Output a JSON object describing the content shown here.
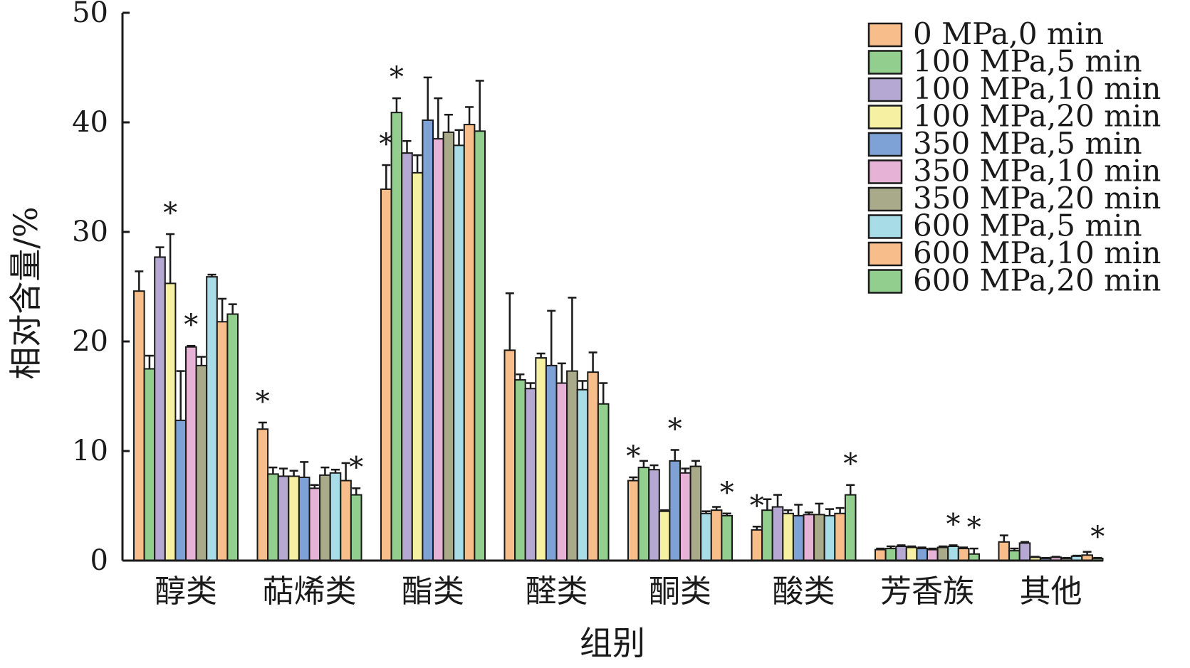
{
  "chart_data": {
    "type": "bar",
    "xlabel": "组别",
    "ylabel": "相对含量/%",
    "ylim": [
      0,
      50
    ],
    "yticks": [
      "0",
      "10",
      "20",
      "30",
      "40",
      "50"
    ],
    "ytick_values": [
      0,
      10,
      20,
      30,
      40,
      50
    ],
    "categories": [
      "醇类",
      "萜烯类",
      "酯类",
      "醛类",
      "酮类",
      "酸类",
      "芳香族",
      "其他"
    ],
    "legend_position": "top-right",
    "significance_marker": "*",
    "series": [
      {
        "name": "0 MPa,0 min",
        "color": "#F7BE8C",
        "values": [
          24.6,
          12.0,
          33.9,
          19.2,
          7.3,
          2.8,
          1.0,
          1.7
        ],
        "errors": [
          1.8,
          0.6,
          2.2,
          5.2,
          0.3,
          0.3,
          0.1,
          0.6
        ],
        "significant": [
          false,
          true,
          true,
          false,
          true,
          true,
          false,
          false
        ]
      },
      {
        "name": "100 MPa,5 min",
        "color": "#92CF8E",
        "values": [
          17.5,
          7.9,
          40.9,
          16.5,
          8.5,
          4.6,
          1.1,
          0.9
        ],
        "errors": [
          1.2,
          0.6,
          1.3,
          0.5,
          0.6,
          1.0,
          0.2,
          0.2
        ],
        "significant": [
          false,
          false,
          true,
          false,
          false,
          false,
          false,
          false
        ]
      },
      {
        "name": "100 MPa,10 min",
        "color": "#B5A8D3",
        "values": [
          27.7,
          7.7,
          37.2,
          15.7,
          8.3,
          4.9,
          1.3,
          1.6
        ],
        "errors": [
          0.9,
          0.7,
          1.1,
          0.5,
          0.4,
          1.1,
          0.1,
          0.1
        ],
        "significant": [
          false,
          false,
          false,
          false,
          false,
          false,
          false,
          false
        ]
      },
      {
        "name": "100 MPa,20 min",
        "color": "#F6F1A2",
        "values": [
          25.3,
          7.7,
          35.4,
          18.5,
          4.5,
          4.3,
          1.2,
          0.3
        ],
        "errors": [
          4.5,
          0.5,
          1.6,
          0.4,
          0.1,
          0.3,
          0.1,
          0.05
        ],
        "significant": [
          true,
          false,
          false,
          false,
          false,
          false,
          false,
          false
        ]
      },
      {
        "name": "350 MPa,5 min",
        "color": "#7EA2D6",
        "values": [
          12.8,
          7.6,
          40.2,
          17.8,
          9.1,
          4.1,
          1.1,
          0.2
        ],
        "errors": [
          4.5,
          1.4,
          3.9,
          5.0,
          1.0,
          1.0,
          0.1,
          0.05
        ],
        "significant": [
          false,
          false,
          false,
          false,
          true,
          false,
          false,
          false
        ]
      },
      {
        "name": "350 MPa,10 min",
        "color": "#E6B3D6",
        "values": [
          19.5,
          6.6,
          38.5,
          16.2,
          8.0,
          4.2,
          1.0,
          0.3
        ],
        "errors": [
          0.1,
          0.3,
          3.7,
          1.8,
          0.4,
          0.2,
          0.1,
          0.05
        ],
        "significant": [
          true,
          false,
          false,
          false,
          false,
          false,
          false,
          false
        ]
      },
      {
        "name": "350 MPa,20 min",
        "color": "#A9AA8A",
        "values": [
          17.8,
          7.8,
          39.1,
          17.3,
          8.6,
          4.2,
          1.2,
          0.2
        ],
        "errors": [
          0.8,
          0.7,
          1.6,
          6.7,
          0.5,
          1.0,
          0.1,
          0.05
        ],
        "significant": [
          false,
          false,
          false,
          false,
          false,
          false,
          false,
          false
        ]
      },
      {
        "name": "600 MPa,5 min",
        "color": "#A8DCE6",
        "values": [
          25.9,
          8.0,
          37.9,
          15.6,
          4.3,
          4.1,
          1.3,
          0.4
        ],
        "errors": [
          0.2,
          0.3,
          1.4,
          0.8,
          0.2,
          0.6,
          0.1,
          0.05
        ],
        "significant": [
          false,
          false,
          false,
          false,
          false,
          false,
          true,
          false
        ]
      },
      {
        "name": "600 MPa,10 min",
        "color": "#F7BE8C",
        "values": [
          21.8,
          7.3,
          39.8,
          17.2,
          4.6,
          4.3,
          1.1,
          0.5
        ],
        "errors": [
          2.1,
          1.6,
          1.6,
          1.8,
          0.3,
          0.5,
          0.1,
          0.3
        ],
        "significant": [
          false,
          false,
          false,
          false,
          false,
          false,
          false,
          false
        ]
      },
      {
        "name": "600 MPa,20 min",
        "color": "#92CF8E",
        "values": [
          22.5,
          6.0,
          39.2,
          14.3,
          4.1,
          6.0,
          0.6,
          0.2
        ],
        "errors": [
          0.9,
          0.6,
          4.6,
          1.9,
          0.2,
          0.9,
          0.5,
          0.05
        ],
        "significant": [
          false,
          true,
          false,
          false,
          true,
          true,
          true,
          true
        ]
      }
    ]
  }
}
